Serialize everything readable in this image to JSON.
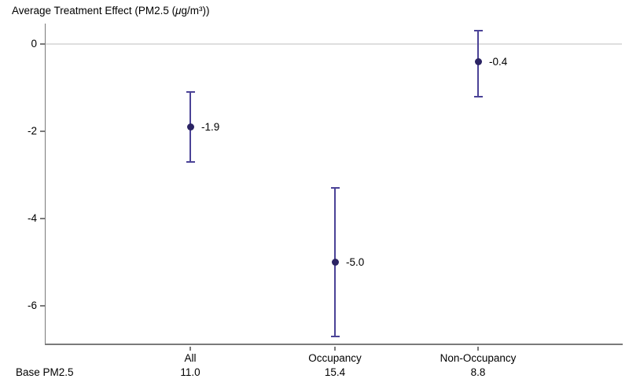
{
  "header": {
    "title_prefix": "Average Treatment Effect (PM2.5 (",
    "title_mu": "μ",
    "title_suffix": "g/m³))"
  },
  "base_row": {
    "label": "Base PM2.5"
  },
  "chart_data": {
    "type": "scatter",
    "title": "Average Treatment Effect (PM2.5 (μg/m³))",
    "xlabel": "",
    "ylabel": "Average Treatment Effect (PM2.5 (μg/m³))",
    "categories": [
      "All",
      "Occupancy",
      "Non-Occupancy"
    ],
    "series": [
      {
        "name": "ATE point estimate with confidence interval",
        "values": [
          -1.9,
          -5.0,
          -0.4
        ],
        "ci_low": [
          -2.7,
          -6.7,
          -1.2
        ],
        "ci_high": [
          -1.1,
          -3.3,
          0.3
        ]
      }
    ],
    "point_labels": [
      "-1.9",
      "-5.0",
      "-0.4"
    ],
    "base_pm25_row": {
      "label": "Base PM2.5",
      "values": [
        "11.0",
        "15.4",
        "8.8"
      ]
    },
    "y_ticks": [
      {
        "label": "0",
        "value": 0
      },
      {
        "label": "-2",
        "value": -2
      },
      {
        "label": "-4",
        "value": -4
      },
      {
        "label": "-6",
        "value": -6
      }
    ],
    "ylim": [
      -6.9,
      0.5
    ],
    "zero_line": true,
    "grid": false,
    "legend": "none",
    "colors": {
      "marker": "#2b2464",
      "error_bar": "#4b4397",
      "zero_line": "#dedede",
      "axis": "#7a7a7a",
      "text": "#000000"
    }
  }
}
